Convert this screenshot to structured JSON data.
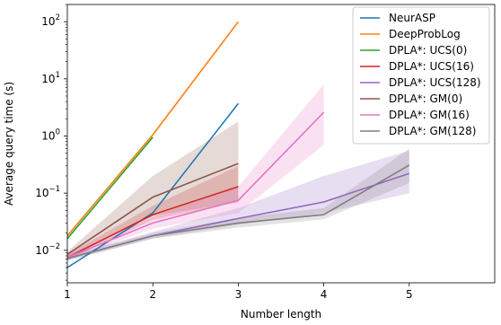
{
  "chart_data": {
    "type": "line",
    "title": "",
    "xlabel": "Number length",
    "ylabel": "Average query time (s)",
    "xlim": [
      1,
      6
    ],
    "ylim": [
      0.0027,
      200
    ],
    "yscale": "log",
    "grid": false,
    "legend_position": "top-right",
    "x_ticks": [
      {
        "value": 1,
        "label": "1"
      },
      {
        "value": 2,
        "label": "2"
      },
      {
        "value": 3,
        "label": "3"
      },
      {
        "value": 4,
        "label": "4"
      },
      {
        "value": 5,
        "label": "5"
      }
    ],
    "y_ticks": [
      {
        "value": 0.01,
        "base": "10",
        "exp": "−2"
      },
      {
        "value": 0.1,
        "base": "10",
        "exp": "−1"
      },
      {
        "value": 1,
        "base": "10",
        "exp": "0"
      },
      {
        "value": 10,
        "base": "10",
        "exp": "1"
      },
      {
        "value": 100,
        "base": "10",
        "exp": "2"
      }
    ],
    "series": [
      {
        "name": "NeurASP",
        "color": "#1f77b4",
        "x": [
          1,
          2,
          3
        ],
        "y": [
          0.005,
          0.045,
          3.7
        ],
        "low": null,
        "high": null
      },
      {
        "name": "DeepProbLog",
        "color": "#ff7f0e",
        "x": [
          1,
          2,
          3
        ],
        "y": [
          0.018,
          1.05,
          100
        ],
        "low": null,
        "high": null
      },
      {
        "name": "DPLA*: UCS(0)",
        "color": "#2ca02c",
        "x": [
          1,
          2
        ],
        "y": [
          0.016,
          0.95
        ],
        "low": null,
        "high": null
      },
      {
        "name": "DPLA*: UCS(16)",
        "color": "#d62728",
        "x": [
          1,
          2,
          3
        ],
        "y": [
          0.0075,
          0.042,
          0.13
        ],
        "low": [
          0.0068,
          0.034,
          0.07
        ],
        "high": [
          0.0085,
          0.06,
          0.3
        ]
      },
      {
        "name": "DPLA*: UCS(128)",
        "color": "#9467bd",
        "x": [
          1,
          2,
          3,
          4,
          5
        ],
        "y": [
          0.0072,
          0.018,
          0.036,
          0.07,
          0.22
        ],
        "low": [
          0.0066,
          0.016,
          0.028,
          0.045,
          0.1
        ],
        "high": [
          0.008,
          0.021,
          0.055,
          0.2,
          0.55
        ]
      },
      {
        "name": "DPLA*: GM(0)",
        "color": "#8c564b",
        "x": [
          1,
          2,
          3
        ],
        "y": [
          0.0085,
          0.085,
          0.33
        ],
        "low": [
          0.0075,
          0.04,
          0.07
        ],
        "high": [
          0.0095,
          0.2,
          1.8
        ]
      },
      {
        "name": "DPLA*: GM(16)",
        "color": "#e377c2",
        "x": [
          1,
          2,
          3,
          4
        ],
        "y": [
          0.0075,
          0.03,
          0.075,
          2.6
        ],
        "low": [
          0.0068,
          0.024,
          0.045,
          0.7
        ],
        "high": [
          0.0085,
          0.038,
          0.13,
          8
        ]
      },
      {
        "name": "DPLA*: GM(128)",
        "color": "#7f7f7f",
        "x": [
          1,
          2,
          3,
          4,
          5
        ],
        "y": [
          0.0072,
          0.018,
          0.03,
          0.042,
          0.31
        ],
        "low": [
          0.0066,
          0.016,
          0.025,
          0.035,
          0.15
        ],
        "high": [
          0.008,
          0.02,
          0.037,
          0.055,
          0.6
        ]
      }
    ]
  }
}
